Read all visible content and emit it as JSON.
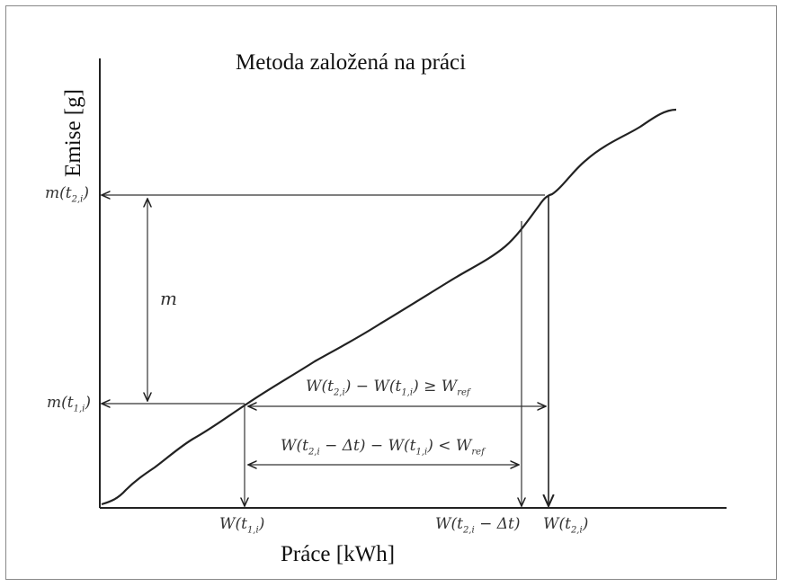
{
  "title": "Metoda založená na práci",
  "axes": {
    "y_label": "Emise [g]",
    "x_label": "Práce [kWh]"
  },
  "labels": {
    "m_t2": "m(t2,i)",
    "m_t1": "m(t1,i)",
    "m": "m",
    "W_t1": "W(t1,i)",
    "W_t2_minus_dt": "W(t2,i − Δt)",
    "W_t2": "W(t2,i)",
    "condition_ge": "W(t2,i) − W(t1,i) ≥ Wref",
    "condition_lt": "W(t2,i − Δt) − W(t1,i) < Wref"
  }
}
